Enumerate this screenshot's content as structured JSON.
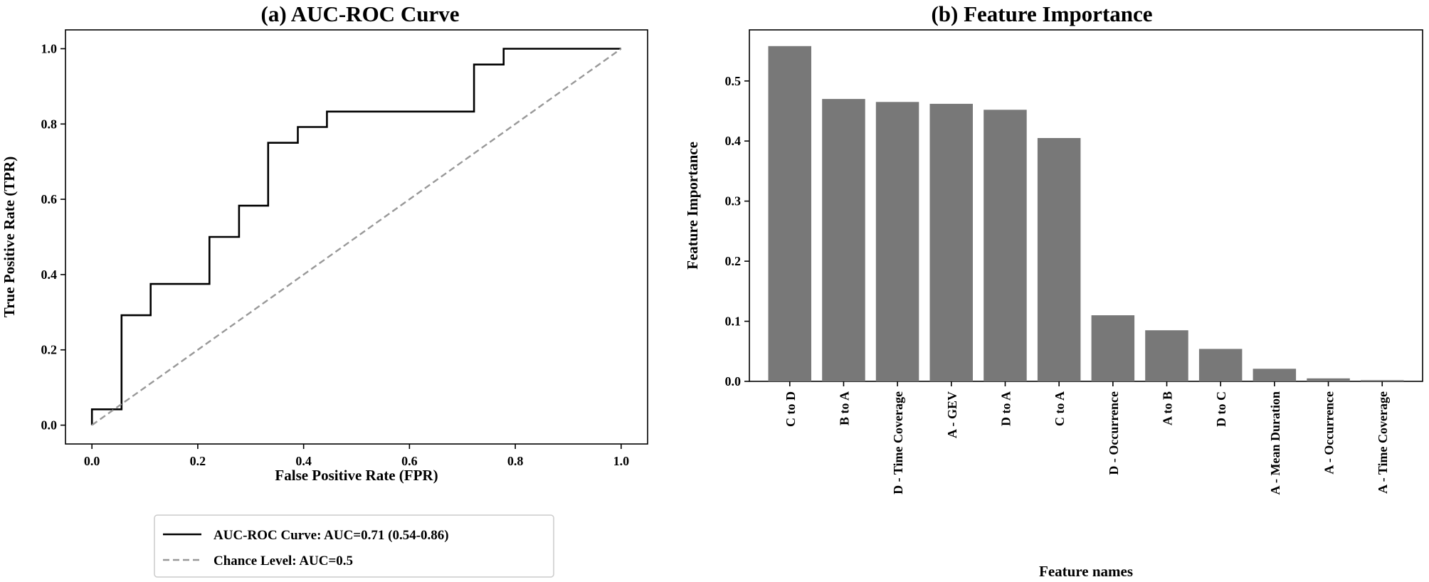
{
  "chart_data": [
    {
      "type": "line",
      "title": "(a) AUC-ROC Curve",
      "xlabel": "False Positive Rate (FPR)",
      "ylabel": "True Positive Rate (TPR)",
      "xlim": [
        -0.05,
        1.05
      ],
      "ylim": [
        -0.05,
        1.05
      ],
      "xticks": [
        "0.0",
        "0.2",
        "0.4",
        "0.6",
        "0.8",
        "1.0"
      ],
      "yticks": [
        "0.0",
        "0.2",
        "0.4",
        "0.6",
        "0.8",
        "1.0"
      ],
      "grid": false,
      "legend_position": "below",
      "series": [
        {
          "name": "AUC-ROC Curve: AUC=0.71 (0.54-0.86)",
          "style": "solid",
          "color": "#000000",
          "x": [
            0.0,
            0.0,
            0.056,
            0.056,
            0.111,
            0.111,
            0.222,
            0.222,
            0.278,
            0.278,
            0.333,
            0.333,
            0.389,
            0.389,
            0.444,
            0.444,
            0.722,
            0.722,
            0.778,
            0.778,
            1.0
          ],
          "y": [
            0.0,
            0.042,
            0.042,
            0.292,
            0.292,
            0.375,
            0.375,
            0.5,
            0.5,
            0.583,
            0.583,
            0.75,
            0.75,
            0.792,
            0.792,
            0.833,
            0.833,
            0.958,
            0.958,
            1.0,
            1.0
          ]
        },
        {
          "name": "Chance Level: AUC=0.5",
          "style": "dashed",
          "color": "#999999",
          "x": [
            0.0,
            1.0
          ],
          "y": [
            0.0,
            1.0
          ]
        }
      ]
    },
    {
      "type": "bar",
      "title": "(b) Feature Importance",
      "xlabel": "Feature names",
      "ylabel": "Feature Importance",
      "ylim": [
        0.0,
        0.585
      ],
      "yticks": [
        "0.0",
        "0.1",
        "0.2",
        "0.3",
        "0.4",
        "0.5"
      ],
      "grid": false,
      "bar_color": "#787878",
      "categories": [
        "C to D",
        "B to A",
        "D - Time Coverage",
        "A - GEV",
        "D to A",
        "C to A",
        "D - Occurrence",
        "A to B",
        "D to C",
        "A - Mean Duration",
        "A - Occurrence",
        "A - Time Coverage"
      ],
      "values": [
        0.558,
        0.47,
        0.465,
        0.462,
        0.452,
        0.405,
        0.11,
        0.085,
        0.054,
        0.021,
        0.005,
        0.002
      ]
    }
  ]
}
